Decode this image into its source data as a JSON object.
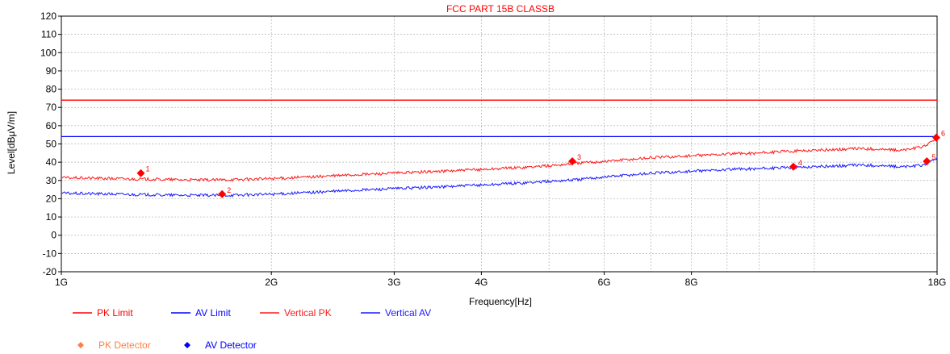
{
  "chart_data": {
    "type": "line",
    "title": "FCC PART 15B CLASSB",
    "xlabel": "Frequency[Hz]",
    "ylabel": "Level[dBμV/m]",
    "x_scale": "log",
    "xlim": [
      1000000000,
      18000000000
    ],
    "ylim": [
      -20,
      120
    ],
    "x_tick_labels": [
      {
        "value": 1000000000,
        "label": "1G"
      },
      {
        "value": 2000000000,
        "label": "2G"
      },
      {
        "value": 3000000000,
        "label": "3G"
      },
      {
        "value": 4000000000,
        "label": "4G"
      },
      {
        "value": 6000000000,
        "label": "6G"
      },
      {
        "value": 8000000000,
        "label": "8G"
      },
      {
        "value": 18000000000,
        "label": "18G"
      }
    ],
    "x_minor_grid": [
      5000000000,
      7000000000,
      9000000000,
      10000000000,
      12000000000
    ],
    "y_ticks": [
      120,
      110,
      100,
      90,
      80,
      70,
      60,
      50,
      40,
      30,
      20,
      10,
      0,
      -10,
      -20
    ],
    "grid": true,
    "colors": {
      "pk_limit": "#ff0000",
      "av_limit": "#0000ff",
      "vertical_pk": "#ff1a1a",
      "vertical_av": "#1a1aff",
      "pk_detector": "#ff8040",
      "av_detector": "#0000ff",
      "marker": "#ff0000",
      "title": "#ff0000",
      "grid": "#b0b0b0"
    },
    "series": [
      {
        "name": "PK Limit",
        "color_key": "pk_limit",
        "points": [
          [
            1000000000,
            74
          ],
          [
            18000000000,
            74
          ]
        ]
      },
      {
        "name": "AV Limit",
        "color_key": "av_limit",
        "points": [
          [
            1000000000,
            54
          ],
          [
            18000000000,
            54
          ]
        ]
      },
      {
        "name": "Vertical PK",
        "color_key": "vertical_pk",
        "points": [
          [
            1000000000,
            31.5
          ],
          [
            1200000000,
            31
          ],
          [
            1400000000,
            30.5
          ],
          [
            1600000000,
            30.2
          ],
          [
            1800000000,
            30.5
          ],
          [
            2000000000,
            31
          ],
          [
            2300000000,
            32
          ],
          [
            2600000000,
            33
          ],
          [
            3000000000,
            34
          ],
          [
            3500000000,
            35
          ],
          [
            4000000000,
            36
          ],
          [
            4500000000,
            37
          ],
          [
            5000000000,
            38
          ],
          [
            5500000000,
            39.5
          ],
          [
            6000000000,
            40.5
          ],
          [
            6500000000,
            41.5
          ],
          [
            7000000000,
            42.5
          ],
          [
            8000000000,
            43.5
          ],
          [
            9000000000,
            44.5
          ],
          [
            10000000000,
            45
          ],
          [
            11000000000,
            46
          ],
          [
            12000000000,
            46.5
          ],
          [
            13000000000,
            47
          ],
          [
            14000000000,
            47.5
          ],
          [
            15000000000,
            47
          ],
          [
            16000000000,
            46.5
          ],
          [
            17000000000,
            48
          ],
          [
            17500000000,
            50
          ],
          [
            18000000000,
            53
          ]
        ]
      },
      {
        "name": "Vertical AV",
        "color_key": "vertical_av",
        "points": [
          [
            1000000000,
            23
          ],
          [
            1200000000,
            22.5
          ],
          [
            1400000000,
            22
          ],
          [
            1600000000,
            21.8
          ],
          [
            1800000000,
            22
          ],
          [
            2000000000,
            22.5
          ],
          [
            2300000000,
            23.5
          ],
          [
            2600000000,
            24.5
          ],
          [
            3000000000,
            25.5
          ],
          [
            3500000000,
            26.5
          ],
          [
            4000000000,
            27.5
          ],
          [
            4500000000,
            28.5
          ],
          [
            5000000000,
            29.5
          ],
          [
            5500000000,
            30.5
          ],
          [
            6000000000,
            32
          ],
          [
            6500000000,
            33
          ],
          [
            7000000000,
            34
          ],
          [
            8000000000,
            35
          ],
          [
            9000000000,
            36
          ],
          [
            10000000000,
            36.5
          ],
          [
            11000000000,
            37
          ],
          [
            12000000000,
            37.5
          ],
          [
            13000000000,
            38
          ],
          [
            14000000000,
            38.5
          ],
          [
            15000000000,
            38
          ],
          [
            16000000000,
            37.5
          ],
          [
            17000000000,
            38
          ],
          [
            17500000000,
            39.5
          ],
          [
            18000000000,
            42.5
          ]
        ]
      }
    ],
    "markers": [
      {
        "label": "1",
        "detector": "PK Detector",
        "x": 1300000000,
        "y": 34
      },
      {
        "label": "2",
        "detector": "AV Detector",
        "x": 1700000000,
        "y": 22.5
      },
      {
        "label": "3",
        "detector": "PK Detector",
        "x": 5400000000,
        "y": 40.5
      },
      {
        "label": "4",
        "detector": "AV Detector",
        "x": 11200000000,
        "y": 37.5
      },
      {
        "label": "5",
        "detector": "AV Detector",
        "x": 17400000000,
        "y": 40.5
      },
      {
        "label": "6",
        "detector": "PK Detector",
        "x": 17950000000,
        "y": 53.5
      }
    ],
    "legend": {
      "placement": "bottom-left",
      "items": [
        {
          "label": "PK Limit",
          "kind": "line",
          "color_key": "pk_limit"
        },
        {
          "label": "AV Limit",
          "kind": "line",
          "color_key": "av_limit"
        },
        {
          "label": "Vertical PK",
          "kind": "line",
          "color_key": "vertical_pk"
        },
        {
          "label": "Vertical AV",
          "kind": "line",
          "color_key": "vertical_av"
        },
        {
          "label": "PK Detector",
          "kind": "diamond",
          "color_key": "pk_detector"
        },
        {
          "label": "AV Detector",
          "kind": "diamond",
          "color_key": "av_detector"
        }
      ]
    }
  }
}
